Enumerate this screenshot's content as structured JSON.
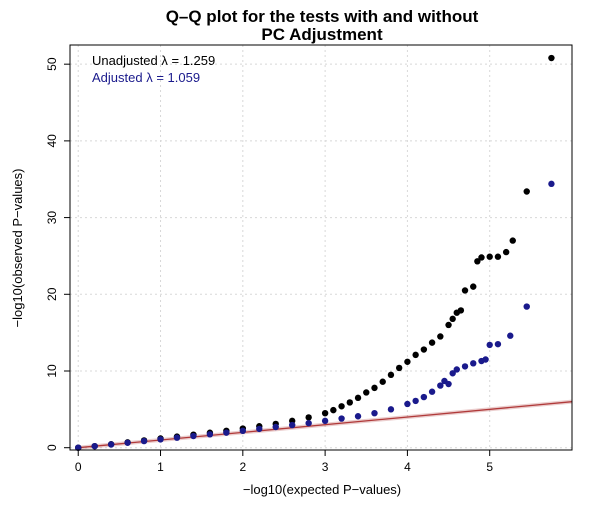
{
  "chart_data": {
    "type": "scatter",
    "title_line1": "Q–Q plot for the tests with and without",
    "title_line2": "PC Adjustment",
    "xlabel": "−log10(expected P−values)",
    "ylabel": "−log10(observed P−values)",
    "xlim": [
      -0.1,
      6.0
    ],
    "ylim": [
      -0.3,
      52.5
    ],
    "xticks": [
      0,
      1,
      2,
      3,
      4,
      5
    ],
    "yticks": [
      0,
      10,
      20,
      30,
      40,
      50
    ],
    "grid": true,
    "legend_position": "top-left",
    "legend": [
      {
        "text": "Unadjusted λ = 1.259",
        "color": "#000000"
      },
      {
        "text": "Adjusted λ = 1.059",
        "color": "#1a1a8c"
      }
    ],
    "reference_line": {
      "x": [
        0,
        6.0
      ],
      "y": [
        0,
        6.0
      ],
      "color": "#b03a3a"
    },
    "series": [
      {
        "color": "#000000",
        "x": [
          0,
          0.2,
          0.4,
          0.6,
          0.8,
          1.0,
          1.2,
          1.4,
          1.6,
          1.8,
          2.0,
          2.2,
          2.4,
          2.6,
          2.8,
          3.0,
          3.1,
          3.2,
          3.3,
          3.4,
          3.5,
          3.6,
          3.7,
          3.8,
          3.9,
          4.0,
          4.1,
          4.2,
          4.3,
          4.4,
          4.5,
          4.55,
          4.6,
          4.65,
          4.7,
          4.8,
          4.85,
          4.9,
          5.0,
          5.1,
          5.2,
          5.28,
          5.45,
          5.75
        ],
        "y": [
          0,
          0.2,
          0.45,
          0.7,
          0.95,
          1.2,
          1.45,
          1.7,
          1.95,
          2.2,
          2.5,
          2.8,
          3.1,
          3.5,
          3.95,
          4.5,
          4.9,
          5.4,
          5.9,
          6.5,
          7.2,
          7.8,
          8.6,
          9.5,
          10.4,
          11.2,
          12.1,
          12.8,
          13.7,
          14.5,
          16.0,
          16.8,
          17.6,
          17.9,
          20.5,
          21.0,
          24.3,
          24.8,
          24.9,
          24.9,
          25.5,
          27.0,
          33.4,
          50.8
        ]
      },
      {
        "color": "#1a1a8c",
        "x": [
          0,
          0.2,
          0.4,
          0.6,
          0.8,
          1.0,
          1.2,
          1.4,
          1.6,
          1.8,
          2.0,
          2.2,
          2.4,
          2.6,
          2.8,
          3.0,
          3.2,
          3.4,
          3.6,
          3.8,
          4.0,
          4.1,
          4.2,
          4.3,
          4.4,
          4.45,
          4.5,
          4.55,
          4.6,
          4.7,
          4.8,
          4.9,
          4.95,
          5.0,
          5.1,
          5.25,
          5.45,
          5.75
        ],
        "y": [
          0,
          0.2,
          0.42,
          0.64,
          0.86,
          1.08,
          1.3,
          1.52,
          1.74,
          1.96,
          2.2,
          2.45,
          2.7,
          2.95,
          3.2,
          3.5,
          3.8,
          4.1,
          4.5,
          5.0,
          5.7,
          6.1,
          6.6,
          7.3,
          8.1,
          8.7,
          8.3,
          9.7,
          10.2,
          10.6,
          11.0,
          11.3,
          11.5,
          13.4,
          13.5,
          14.6,
          18.4,
          34.4
        ]
      }
    ]
  }
}
